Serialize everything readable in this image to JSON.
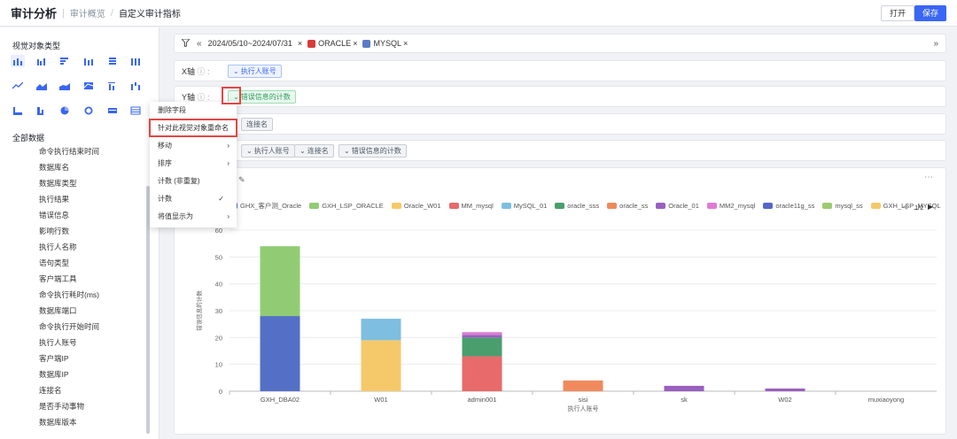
{
  "header": {
    "title": "审计分析",
    "breadcrumb": [
      "审计概览",
      "自定义审计指标"
    ],
    "open_label": "打开",
    "save_label": "保存"
  },
  "sidebar": {
    "visual_types_title": "视觉对象类型",
    "all_data_title": "全部数据",
    "fields": [
      "命令执行结束时间",
      "数据库名",
      "数据库类型",
      "执行结果",
      "错误信息",
      "影响行数",
      "执行人名称",
      "语句类型",
      "客户端工具",
      "命令执行耗时(ms)",
      "数据库端口",
      "命令执行开始时间",
      "执行人账号",
      "客户端IP",
      "数据库IP",
      "连接名",
      "是否手动事物",
      "数据库版本"
    ]
  },
  "filters": {
    "date_range": "2024/05/10~2024/07/31",
    "db_tags": [
      "ORACLE",
      "MYSQL"
    ]
  },
  "x_axis": {
    "label": "X轴",
    "field": "执行人账号"
  },
  "y_axis": {
    "label": "Y轴",
    "field": "错误信息的计数"
  },
  "legend_row": {
    "field": "连接名"
  },
  "tooltip_row": {
    "fields": [
      "执行人账号",
      "连接名",
      "错误信息的计数"
    ]
  },
  "context_menu": {
    "items": [
      "删除字段",
      "针对此视觉对象重命名",
      "移动",
      "排序",
      "计数 (非重复)",
      "计数",
      "将值显示为"
    ]
  },
  "colors": {
    "accent": "#3a66f5",
    "highlight": "#e54545"
  },
  "chart_data": {
    "type": "bar",
    "stacked": true,
    "xlabel": "执行人账号",
    "ylabel": "错误信息的计数",
    "ylim": [
      0,
      60
    ],
    "yticks": [
      0,
      10,
      20,
      30,
      40,
      50,
      60
    ],
    "categories": [
      "GXH_DBA02",
      "W01",
      "admin001",
      "sisi",
      "sk",
      "W02",
      "muxiaoyong"
    ],
    "legend_page": "1/2",
    "series": [
      {
        "name": "GHX_客户测_Oracle",
        "color": "#5470c6",
        "values": [
          28,
          0,
          0,
          0,
          0,
          0,
          0
        ]
      },
      {
        "name": "GXH_LSP_ORACLE",
        "color": "#91cc75",
        "values": [
          26,
          0,
          0,
          0,
          0,
          0,
          0
        ]
      },
      {
        "name": "Oracle_W01",
        "color": "#f5c96a",
        "values": [
          0,
          19,
          0,
          0,
          0,
          0,
          0
        ]
      },
      {
        "name": "MM_mysql",
        "color": "#e86a6a",
        "values": [
          0,
          0,
          13,
          0,
          0,
          0,
          0
        ]
      },
      {
        "name": "MySQL_01",
        "color": "#7ebee0",
        "values": [
          0,
          8,
          0,
          0,
          0,
          0,
          0
        ]
      },
      {
        "name": "oracle_sss",
        "color": "#4a9e6e",
        "values": [
          0,
          0,
          7,
          0,
          0,
          0,
          0
        ]
      },
      {
        "name": "oracle_ss",
        "color": "#f08a5d",
        "values": [
          0,
          0,
          0,
          4,
          0,
          0,
          0
        ]
      },
      {
        "name": "Oracle_01",
        "color": "#9a5fc0",
        "values": [
          0,
          0,
          1,
          0,
          2,
          1,
          0
        ]
      },
      {
        "name": "MM2_mysql",
        "color": "#e07ad2",
        "values": [
          0,
          0,
          1,
          0,
          0,
          0,
          0
        ]
      },
      {
        "name": "oracle11g_ss",
        "color": "#5565c9",
        "values": [
          0,
          0,
          0,
          0,
          0,
          0,
          0
        ]
      },
      {
        "name": "mysql_ss",
        "color": "#9dcc6e",
        "values": [
          0,
          0,
          0,
          0,
          0,
          0,
          0
        ]
      },
      {
        "name": "GXH_LSP_MYSQL",
        "color": "#f5c96a",
        "values": [
          0,
          0,
          0,
          0,
          0,
          0,
          0
        ]
      }
    ]
  }
}
